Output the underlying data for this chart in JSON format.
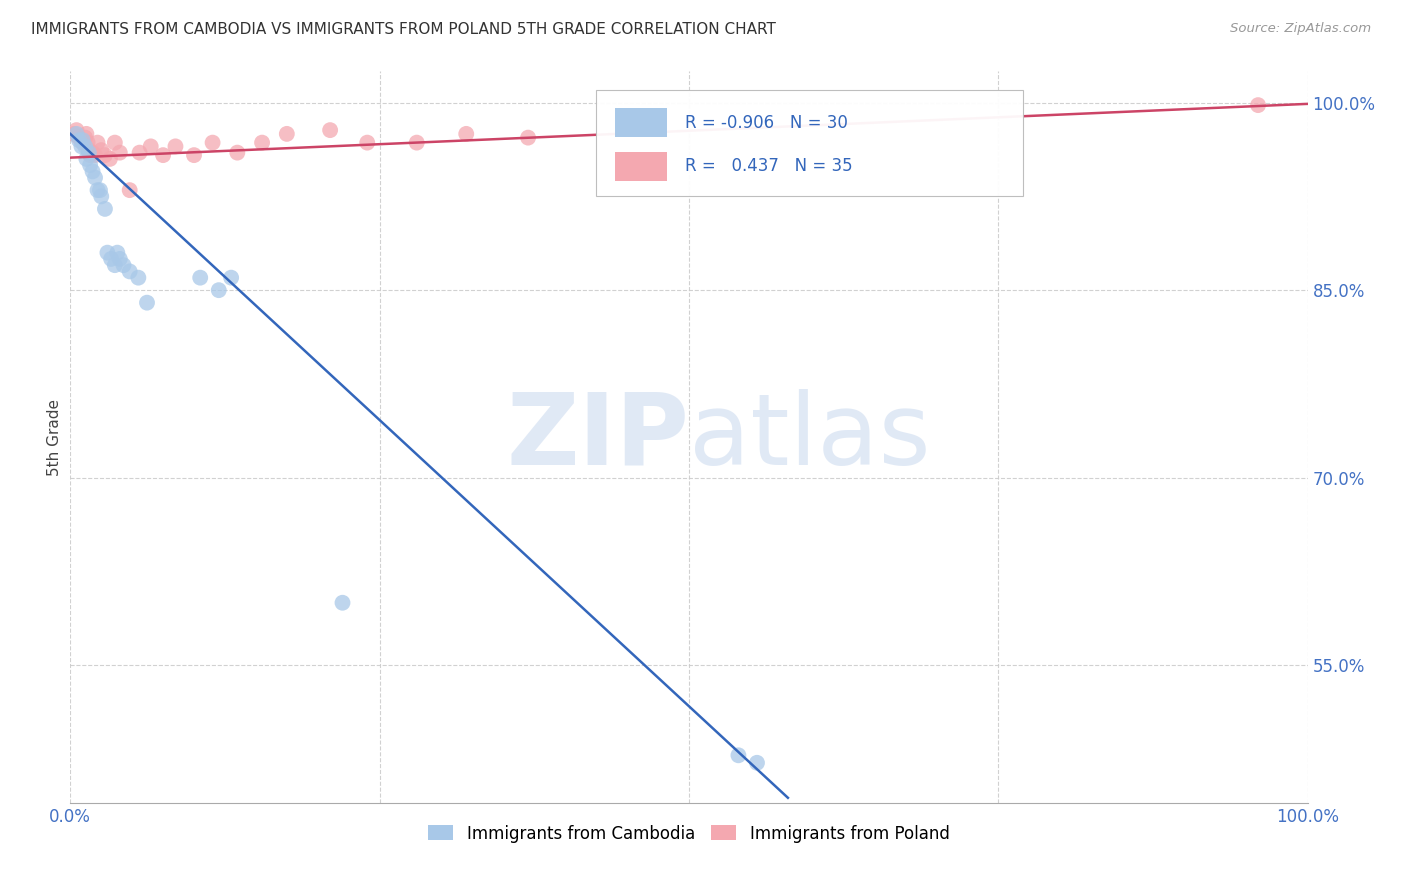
{
  "title": "IMMIGRANTS FROM CAMBODIA VS IMMIGRANTS FROM POLAND 5TH GRADE CORRELATION CHART",
  "source": "Source: ZipAtlas.com",
  "ylabel": "5th Grade",
  "xlim": [
    0.0,
    1.0
  ],
  "ylim": [
    0.44,
    1.025
  ],
  "yticks": [
    0.55,
    0.7,
    0.85,
    1.0
  ],
  "ytick_labels": [
    "55.0%",
    "70.0%",
    "85.0%",
    "100.0%"
  ],
  "watermark_zip": "ZIP",
  "watermark_atlas": "atlas",
  "cambodia_color": "#a8c8e8",
  "poland_color": "#f4a8b0",
  "trend_cambodia_color": "#3366bb",
  "trend_poland_color": "#cc4466",
  "cambodia_x": [
    0.005,
    0.007,
    0.009,
    0.01,
    0.012,
    0.013,
    0.015,
    0.016,
    0.018,
    0.02,
    0.022,
    0.024,
    0.025,
    0.028,
    0.03,
    0.033,
    0.036,
    0.038,
    0.04,
    0.043,
    0.048,
    0.055,
    0.062,
    0.105,
    0.12,
    0.13,
    0.22,
    0.54,
    0.555
  ],
  "cambodia_y": [
    0.975,
    0.97,
    0.965,
    0.97,
    0.965,
    0.955,
    0.96,
    0.95,
    0.945,
    0.94,
    0.93,
    0.93,
    0.925,
    0.915,
    0.88,
    0.875,
    0.87,
    0.88,
    0.875,
    0.87,
    0.865,
    0.86,
    0.84,
    0.86,
    0.85,
    0.86,
    0.6,
    0.478,
    0.472
  ],
  "poland_x": [
    0.003,
    0.005,
    0.007,
    0.009,
    0.01,
    0.012,
    0.013,
    0.014,
    0.015,
    0.016,
    0.018,
    0.02,
    0.022,
    0.025,
    0.028,
    0.032,
    0.036,
    0.04,
    0.048,
    0.056,
    0.065,
    0.075,
    0.085,
    0.1,
    0.115,
    0.135,
    0.155,
    0.175,
    0.21,
    0.24,
    0.28,
    0.32,
    0.37,
    0.96
  ],
  "poland_y": [
    0.975,
    0.978,
    0.972,
    0.97,
    0.968,
    0.972,
    0.975,
    0.968,
    0.962,
    0.958,
    0.96,
    0.958,
    0.968,
    0.962,
    0.958,
    0.955,
    0.968,
    0.96,
    0.93,
    0.96,
    0.965,
    0.958,
    0.965,
    0.958,
    0.968,
    0.96,
    0.968,
    0.975,
    0.978,
    0.968,
    0.968,
    0.975,
    0.972,
    0.998
  ],
  "trend_cambodia_x0": 0.0,
  "trend_cambodia_y0": 0.975,
  "trend_cambodia_x1": 0.58,
  "trend_cambodia_y1": 0.444,
  "trend_poland_x0": 0.0,
  "trend_poland_y0": 0.956,
  "trend_poland_x1": 1.0,
  "trend_poland_y1": 0.999
}
